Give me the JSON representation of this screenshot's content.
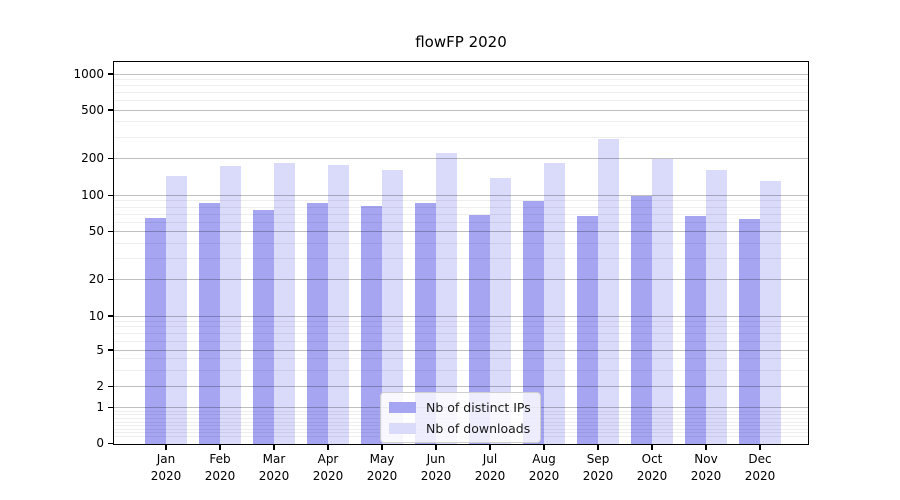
{
  "title": "flowFP 2020",
  "legend": {
    "items": [
      {
        "label": "Nb of distinct IPs",
        "color": "#a5a5f2"
      },
      {
        "label": "Nb of downloads",
        "color": "#dadafa"
      }
    ]
  },
  "chart_data": {
    "type": "bar",
    "title": "flowFP 2020",
    "categories": [
      "Jan",
      "Feb",
      "Mar",
      "Apr",
      "May",
      "Jun",
      "Jul",
      "Aug",
      "Sep",
      "Oct",
      "Nov",
      "Dec"
    ],
    "x_year": "2020",
    "series": [
      {
        "name": "Nb of distinct IPs",
        "color": "#a5a5f2",
        "values": [
          65,
          87,
          76,
          86,
          82,
          86,
          69,
          90,
          68,
          100,
          68,
          63
        ]
      },
      {
        "name": "Nb of downloads",
        "color": "#dadafa",
        "values": [
          145,
          175,
          184,
          176,
          160,
          224,
          140,
          185,
          290,
          197,
          160,
          131
        ]
      }
    ],
    "yscale": "log-like (symlog, compressed below 5)",
    "ylim": [
      0,
      1000
    ],
    "y_major_ticks": [
      1000,
      500,
      200,
      100,
      50,
      20,
      10,
      5,
      2,
      1,
      0
    ],
    "y_minor_ticks": [
      900,
      800,
      700,
      600,
      400,
      300,
      90,
      80,
      70,
      60,
      40,
      30,
      9,
      8,
      7,
      6,
      4,
      3,
      0.9,
      0.8,
      0.7,
      0.6,
      0.5,
      0.4,
      0.3,
      0.2
    ],
    "grid": true,
    "legend_position": "lower center",
    "xlabel": "",
    "ylabel": ""
  }
}
